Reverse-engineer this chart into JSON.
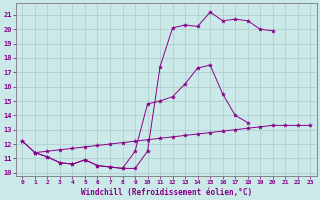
{
  "xlabel": "Windchill (Refroidissement éolien,°C)",
  "bg_color": "#cbe9e9",
  "line_color": "#880088",
  "grid_color": "#aacccc",
  "xlim": [
    -0.5,
    23.5
  ],
  "ylim": [
    9.8,
    21.8
  ],
  "xticks": [
    0,
    1,
    2,
    3,
    4,
    5,
    6,
    7,
    8,
    9,
    10,
    11,
    12,
    13,
    14,
    15,
    16,
    17,
    18,
    19,
    20,
    21,
    22,
    23
  ],
  "yticks": [
    10,
    11,
    12,
    13,
    14,
    15,
    16,
    17,
    18,
    19,
    20,
    21
  ],
  "line1_x": [
    0,
    1,
    2,
    3,
    4,
    5,
    6,
    7,
    8,
    9,
    10,
    11,
    12,
    13,
    14,
    15,
    16,
    17,
    18,
    19,
    20
  ],
  "line1_y": [
    12.2,
    11.4,
    11.1,
    10.7,
    10.6,
    10.9,
    10.5,
    10.4,
    10.3,
    10.3,
    11.5,
    17.4,
    20.1,
    20.3,
    20.2,
    21.2,
    20.6,
    20.7,
    20.6,
    20.0,
    19.9
  ],
  "line2_x": [
    0,
    1,
    2,
    3,
    4,
    5,
    6,
    7,
    8,
    9,
    10,
    11,
    12,
    13,
    14,
    15,
    16,
    17,
    18,
    19,
    20,
    21,
    22,
    23
  ],
  "line2_y": [
    12.2,
    11.4,
    11.1,
    10.7,
    10.6,
    10.9,
    10.5,
    10.4,
    10.3,
    11.5,
    14.8,
    15.0,
    15.3,
    16.2,
    17.3,
    17.5,
    15.5,
    14.0,
    13.5,
    null,
    null,
    null,
    null,
    null
  ],
  "line3_x": [
    1,
    2,
    3,
    4,
    5,
    6,
    7,
    8,
    9,
    10,
    11,
    12,
    13,
    14,
    15,
    16,
    17,
    18,
    19,
    20,
    21,
    22,
    23
  ],
  "line3_y": [
    11.4,
    11.5,
    11.6,
    11.7,
    11.8,
    11.9,
    12.0,
    12.1,
    12.2,
    12.3,
    12.4,
    12.5,
    12.6,
    12.7,
    12.8,
    12.9,
    13.0,
    13.1,
    13.2,
    13.3,
    13.3,
    13.3,
    13.3
  ]
}
